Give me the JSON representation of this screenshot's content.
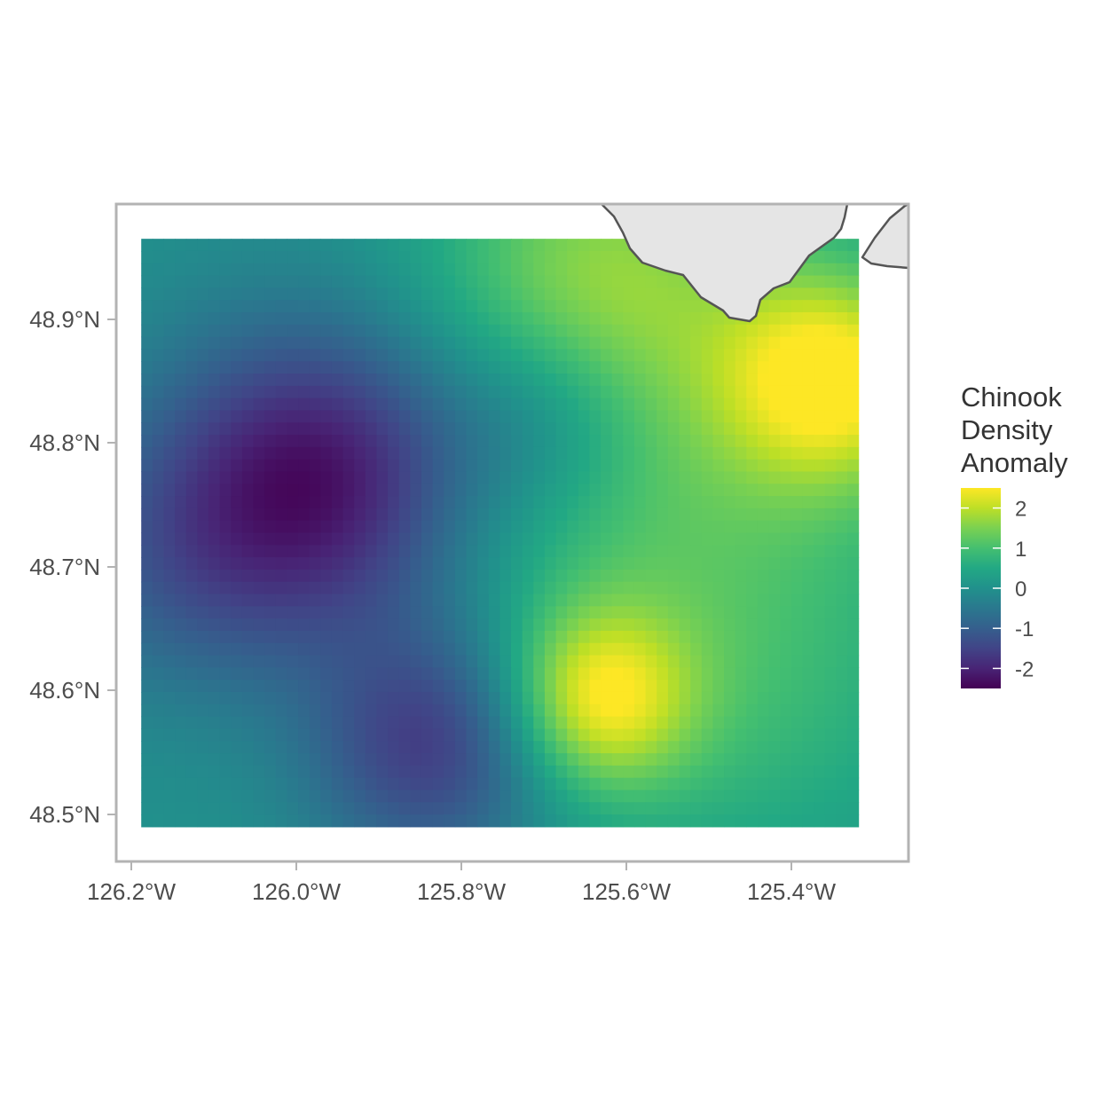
{
  "chart_data": {
    "type": "heatmap",
    "title": "",
    "xlabel": "",
    "ylabel": "",
    "x_range": [
      -126.2,
      -125.25
    ],
    "y_range": [
      48.46,
      48.99
    ],
    "x_ticks": [
      {
        "value": -126.2,
        "label": "126.2°W"
      },
      {
        "value": -126.0,
        "label": "126.0°W"
      },
      {
        "value": -125.8,
        "label": "125.8°W"
      },
      {
        "value": -125.6,
        "label": "125.6°W"
      },
      {
        "value": -125.4,
        "label": "125.4°W"
      }
    ],
    "y_ticks": [
      {
        "value": 48.5,
        "label": "48.5°N"
      },
      {
        "value": 48.6,
        "label": "48.6°N"
      },
      {
        "value": 48.7,
        "label": "48.7°N"
      },
      {
        "value": 48.8,
        "label": "48.8°N"
      },
      {
        "value": 48.9,
        "label": "48.9°N"
      }
    ],
    "grid": false,
    "colormap": "viridis",
    "value_range": [
      -2.5,
      2.5
    ],
    "data_extent": {
      "lon": [
        -126.17,
        -125.31
      ],
      "lat": [
        48.488,
        48.962
      ]
    },
    "blobs": [
      {
        "lon": -125.95,
        "lat": 48.77,
        "amplitude": -2.4,
        "sigma": 0.09
      },
      {
        "lon": -126.12,
        "lat": 48.7,
        "amplitude": -0.8,
        "sigma": 0.08
      },
      {
        "lon": -125.82,
        "lat": 48.555,
        "amplitude": -1.8,
        "sigma": 0.07
      },
      {
        "lon": -125.68,
        "lat": 48.82,
        "amplitude": -0.9,
        "sigma": 0.06
      },
      {
        "lon": -125.62,
        "lat": 48.59,
        "amplitude": 2.0,
        "sigma": 0.05
      },
      {
        "lon": -125.34,
        "lat": 48.85,
        "amplitude": 2.2,
        "sigma": 0.06
      },
      {
        "lon": -125.55,
        "lat": 48.74,
        "amplitude": 1.1,
        "sigma": 0.16
      },
      {
        "lon": -125.62,
        "lat": 48.93,
        "amplitude": 1.3,
        "sigma": 0.09
      },
      {
        "lon": -125.42,
        "lat": 48.57,
        "amplitude": 0.3,
        "sigma": 0.1
      }
    ],
    "land_color": "#e5e5e5",
    "land_outline_color": "#555555",
    "panel_border_color": "#b3b3b3",
    "legend": {
      "title_lines": [
        "Chinook",
        "Density",
        "Anomaly"
      ],
      "placement": "right",
      "breaks": [
        {
          "value": 2,
          "label": "2"
        },
        {
          "value": 1,
          "label": "1"
        },
        {
          "value": 0,
          "label": "0"
        },
        {
          "value": -1,
          "label": "-1"
        },
        {
          "value": -2,
          "label": "-2"
        }
      ]
    }
  }
}
